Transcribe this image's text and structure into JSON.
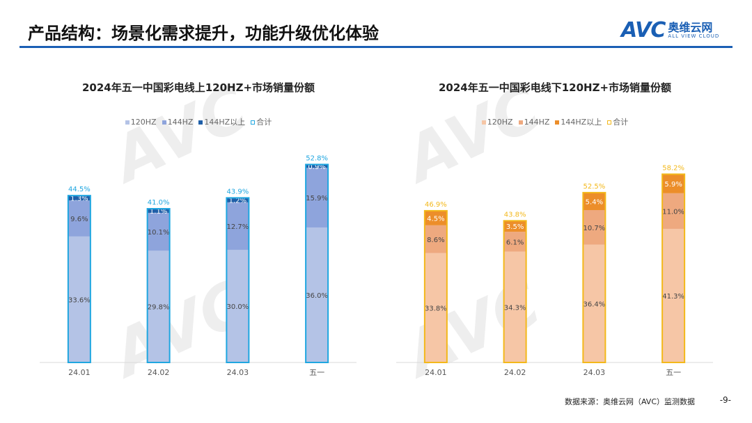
{
  "header": {
    "title": "产品结构：场景化需求提升，功能升级优化体验",
    "logo_text": "AVC",
    "logo_cn": "奥维云网",
    "logo_en": "ALL VIEW CLOUD"
  },
  "footer": {
    "source": "数据来源：奥维云网（AVC）监测数据",
    "page": "-9-"
  },
  "chart_data": [
    {
      "type": "bar",
      "stacked": true,
      "title": "2024年五一中国彩电线上120HZ+市场销量份额",
      "categories": [
        "24.01",
        "24.02",
        "24.03",
        "五一"
      ],
      "series": [
        {
          "name": "120HZ",
          "values": [
            33.6,
            29.8,
            30.0,
            36.0
          ],
          "color": "#b4c3e6"
        },
        {
          "name": "144HZ",
          "values": [
            9.6,
            10.1,
            12.7,
            15.9
          ],
          "color": "#8ea4dc"
        },
        {
          "name": "144HZ以上",
          "values": [
            1.3,
            1.1,
            1.2,
            0.9
          ],
          "color": "#1f5fa8"
        }
      ],
      "total": {
        "name": "合计",
        "values": [
          44.5,
          41.0,
          43.9,
          52.8
        ],
        "color": "#1fa6e0"
      },
      "legend": "top",
      "ylim": [
        0,
        60
      ],
      "grid": false
    },
    {
      "type": "bar",
      "stacked": true,
      "title": "2024年五一中国彩电线下120HZ+市场销量份额",
      "categories": [
        "24.01",
        "24.02",
        "24.03",
        "五一"
      ],
      "series": [
        {
          "name": "120HZ",
          "values": [
            33.8,
            34.3,
            36.4,
            41.3
          ],
          "color": "#f6c6a6"
        },
        {
          "name": "144HZ",
          "values": [
            8.6,
            6.1,
            10.7,
            11.0
          ],
          "color": "#eea97f"
        },
        {
          "name": "144HZ以上",
          "values": [
            4.5,
            3.5,
            5.4,
            5.9
          ],
          "color": "#ec8e2a"
        }
      ],
      "total": {
        "name": "合计",
        "values": [
          46.9,
          43.8,
          52.5,
          58.2
        ],
        "color": "#f3b81a"
      },
      "legend": "top",
      "ylim": [
        0,
        70
      ],
      "grid": false
    }
  ]
}
